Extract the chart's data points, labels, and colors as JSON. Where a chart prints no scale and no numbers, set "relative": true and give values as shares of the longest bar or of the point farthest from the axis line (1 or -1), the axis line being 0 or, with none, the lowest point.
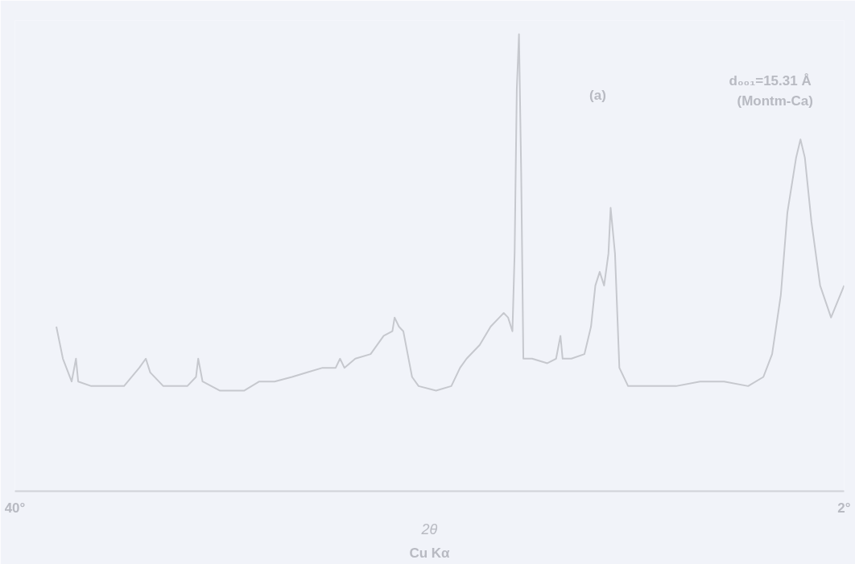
{
  "chart_data": {
    "type": "line",
    "relative": true,
    "xlabel": "2θ",
    "x": [
      38.1,
      37.8,
      37.4,
      37.2,
      37.1,
      36.5,
      35.8,
      35.0,
      34.3,
      34.0,
      33.8,
      33.2,
      32.1,
      31.7,
      31.6,
      31.4,
      30.6,
      29.5,
      28.8,
      28.1,
      27.3,
      26.6,
      25.9,
      25.3,
      25.1,
      24.9,
      24.4,
      23.7,
      23.1,
      22.7,
      22.6,
      22.4,
      22.2,
      22.0,
      21.8,
      21.5,
      20.7,
      20.0,
      19.6,
      19.3,
      18.7,
      18.2,
      17.8,
      17.6,
      17.4,
      17.2,
      17.1,
      17.0,
      16.9,
      16.8,
      16.7,
      16.3,
      15.6,
      15.2,
      15.0,
      14.9,
      14.5,
      13.9,
      13.6,
      13.4,
      13.2,
      13.0,
      12.8,
      12.7,
      12.5,
      12.3,
      11.9,
      11.2,
      10.4,
      9.7,
      8.6,
      7.5,
      6.4,
      5.7,
      5.3,
      4.9,
      4.6,
      4.2,
      4.0,
      3.8,
      3.5,
      3.1,
      2.6,
      2.0
    ],
    "series": [
      {
        "color": "#c6c8ce",
        "values": [
          0.36,
          0.29,
          0.24,
          0.29,
          0.24,
          0.23,
          0.23,
          0.23,
          0.27,
          0.29,
          0.26,
          0.23,
          0.23,
          0.25,
          0.29,
          0.24,
          0.22,
          0.22,
          0.24,
          0.24,
          0.25,
          0.26,
          0.27,
          0.27,
          0.29,
          0.27,
          0.29,
          0.3,
          0.34,
          0.35,
          0.38,
          0.36,
          0.35,
          0.3,
          0.25,
          0.23,
          0.22,
          0.23,
          0.27,
          0.29,
          0.32,
          0.36,
          0.38,
          0.39,
          0.38,
          0.35,
          0.52,
          0.88,
          1.0,
          0.7,
          0.29,
          0.29,
          0.28,
          0.29,
          0.34,
          0.29,
          0.29,
          0.3,
          0.36,
          0.45,
          0.48,
          0.45,
          0.52,
          0.62,
          0.52,
          0.27,
          0.23,
          0.23,
          0.23,
          0.23,
          0.24,
          0.24,
          0.23,
          0.25,
          0.3,
          0.43,
          0.61,
          0.73,
          0.77,
          0.73,
          0.59,
          0.45,
          0.38,
          0.45
        ]
      }
    ],
    "xlim": [
      40,
      2
    ],
    "xticks": [
      {
        "value": 40,
        "label": "40°"
      },
      {
        "value": 2,
        "label": "2°"
      }
    ],
    "annotations": [
      "Cu Kα",
      "(a)",
      "d₀₀₁=15.31 Å",
      "(Montm-Ca)"
    ],
    "grid": false,
    "marker": "none",
    "line_style": "solid"
  }
}
